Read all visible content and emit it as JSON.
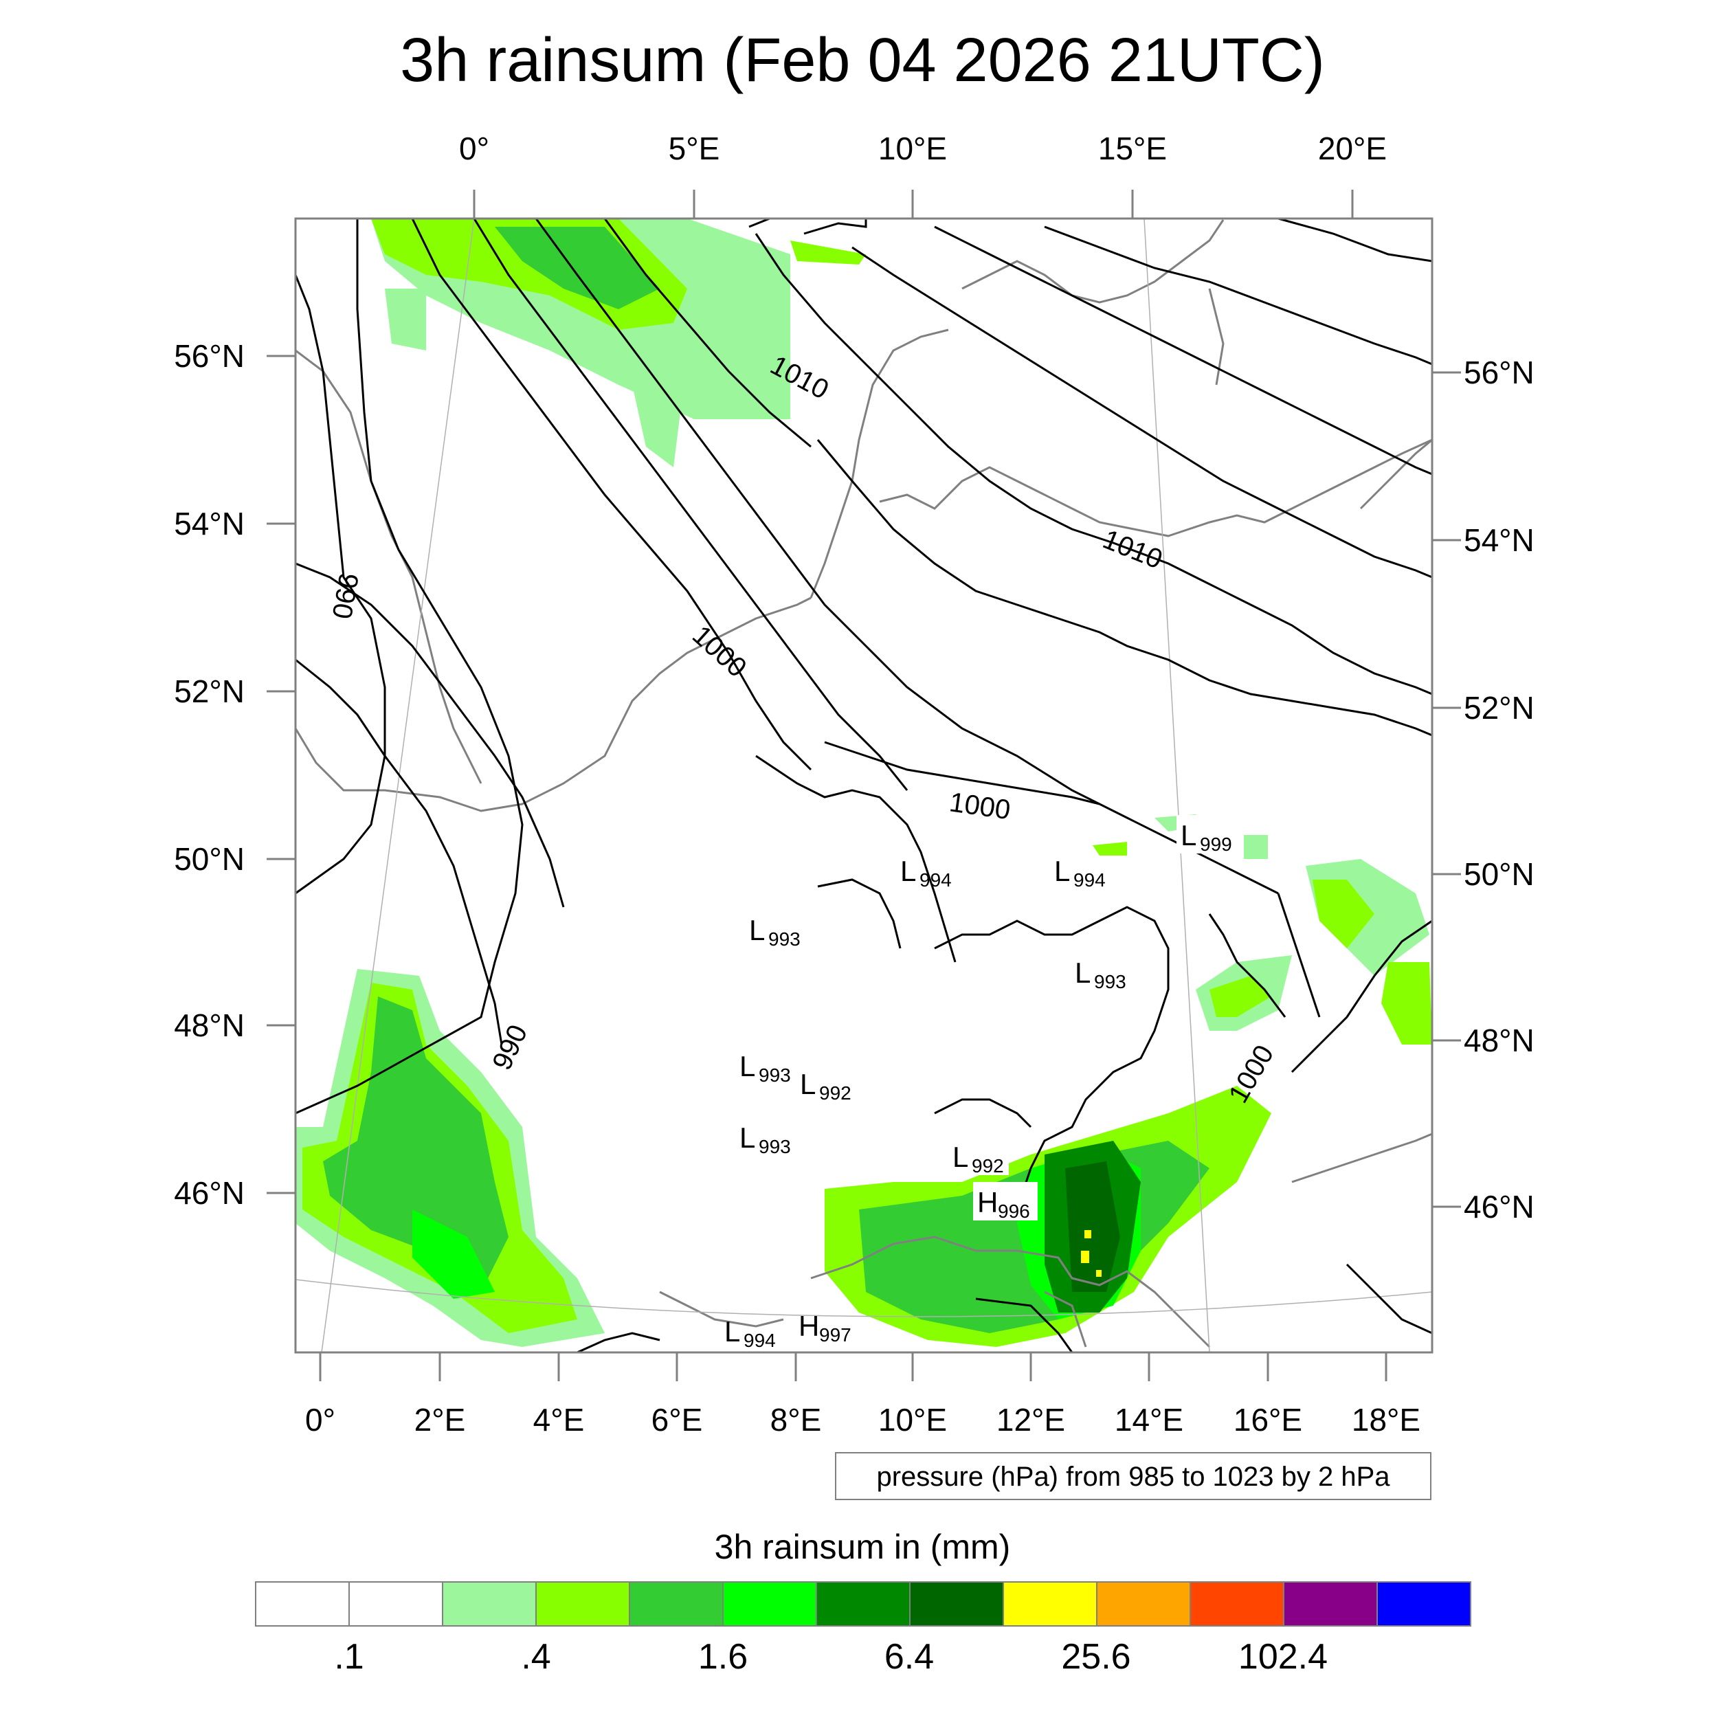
{
  "title": "3h rainsum (Feb 04 2026 21UTC)",
  "top_lon_labels": [
    "0°",
    "5°E",
    "10°E",
    "15°E",
    "20°E"
  ],
  "bottom_lon_labels": [
    "0°",
    "2°E",
    "4°E",
    "6°E",
    "8°E",
    "10°E",
    "12°E",
    "14°E",
    "16°E",
    "18°E"
  ],
  "left_lat_labels": [
    "56°N",
    "54°N",
    "52°N",
    "50°N",
    "48°N",
    "46°N"
  ],
  "right_lat_labels": [
    "56°N",
    "54°N",
    "52°N",
    "50°N",
    "48°N",
    "46°N"
  ],
  "isobar_labels": [
    "1010",
    "1010",
    "1000",
    "1000",
    "990",
    "990",
    "1000"
  ],
  "pressure_systems": [
    {
      "type": "L",
      "value": "999"
    },
    {
      "type": "L",
      "value": "994"
    },
    {
      "type": "L",
      "value": "994"
    },
    {
      "type": "L",
      "value": "993"
    },
    {
      "type": "L",
      "value": "993"
    },
    {
      "type": "L",
      "value": "993"
    },
    {
      "type": "L",
      "value": "992"
    },
    {
      "type": "L",
      "value": "993"
    },
    {
      "type": "L",
      "value": "992"
    },
    {
      "type": "H",
      "value": "996"
    },
    {
      "type": "L",
      "value": "994"
    },
    {
      "type": "H",
      "value": "997"
    }
  ],
  "footnote": "pressure (hPa) from 985 to 1023 by 2 hPa",
  "colorbar": {
    "title": "3h rainsum in (mm)",
    "colors": [
      "#ffffff",
      "#ffffff",
      "#9cf79c",
      "#88ff00",
      "#33cc33",
      "#00ff00",
      "#008800",
      "#006600",
      "#ffff00",
      "#ffa500",
      "#ff4500",
      "#880088",
      "#0000ff"
    ],
    "labels": [
      ".1",
      ".4",
      "1.6",
      "6.4",
      "25.6",
      "102.4"
    ]
  }
}
